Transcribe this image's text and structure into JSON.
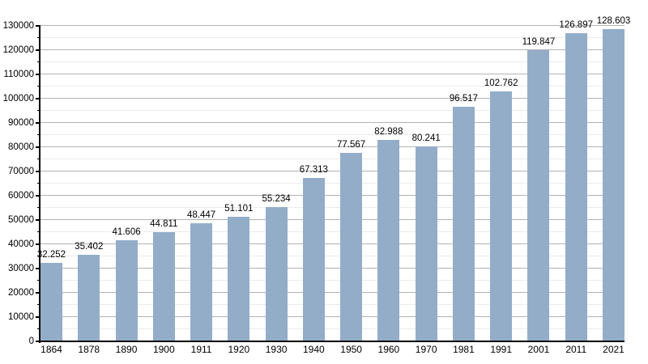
{
  "chart_data": {
    "type": "bar",
    "title": "",
    "xlabel": "",
    "ylabel": "",
    "categories": [
      "1864",
      "1878",
      "1890",
      "1900",
      "1911",
      "1920",
      "1930",
      "1940",
      "1950",
      "1960",
      "1970",
      "1981",
      "1991",
      "2001",
      "2011",
      "2021"
    ],
    "values": [
      32252,
      35402,
      41606,
      44811,
      48447,
      51101,
      55234,
      67313,
      77567,
      82988,
      80241,
      96517,
      102762,
      119847,
      126897,
      128603
    ],
    "value_labels": [
      "32.252",
      "35.402",
      "41.606",
      "44.811",
      "48.447",
      "51.101",
      "55.234",
      "67.313",
      "77.567",
      "82.988",
      "80.241",
      "96.517",
      "102.762",
      "119.847",
      "126.897",
      "128.603"
    ],
    "y_tick_labels": [
      "0",
      "10000",
      "20000",
      "30000",
      "40000",
      "50000",
      "60000",
      "70000",
      "80000",
      "90000",
      "100000",
      "110000",
      "120000",
      "130000"
    ],
    "ylim": [
      0,
      130000
    ],
    "y_major_step": 10000,
    "y_minor_step": 5000,
    "grid": true,
    "legend": false,
    "colors": {
      "bar": "#93adc9",
      "axis": "#000000",
      "major_grid": "#b3b3b3",
      "minor_grid": "#ebebeb",
      "text": "#000000"
    }
  }
}
